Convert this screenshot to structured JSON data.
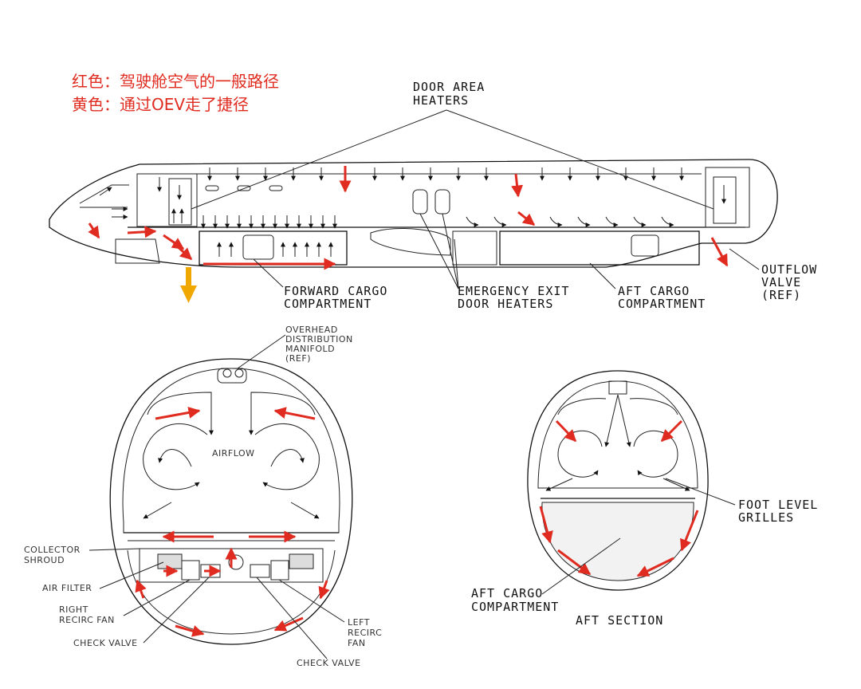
{
  "legend": {
    "red": "红色：驾驶舱空气的一般路径",
    "yellow": "黄色：通过OEV走了捷径"
  },
  "top_labels": {
    "door_area_heaters_1": "DOOR AREA",
    "door_area_heaters_2": "HEATERS",
    "forward_cargo_1": "FORWARD CARGO",
    "forward_cargo_2": "COMPARTMENT",
    "emergency_exit_1": "EMERGENCY EXIT",
    "emergency_exit_2": "DOOR HEATERS",
    "aft_cargo_1": "AFT CARGO",
    "aft_cargo_2": "COMPARTMENT",
    "outflow_1": "OUTFLOW",
    "outflow_2": "VALVE",
    "outflow_3": "(REF)"
  },
  "front_section_labels": {
    "manifold_1": "OVERHEAD",
    "manifold_2": "DISTRIBUTION",
    "manifold_3": "MANIFOLD",
    "manifold_4": "(REF)",
    "airflow": "AIRFLOW",
    "collector_1": "COLLECTOR",
    "collector_2": "SHROUD",
    "air_filter": "AIR FILTER",
    "right_fan_1": "RIGHT",
    "right_fan_2": "RECIRC FAN",
    "check_valve_left": "CHECK VALVE",
    "left_fan_1": "LEFT",
    "left_fan_2": "RECIRC",
    "left_fan_3": "FAN",
    "check_valve_bottom": "CHECK VALVE"
  },
  "aft_section_labels": {
    "foot_level_1": "FOOT LEVEL",
    "foot_level_2": "GRILLES",
    "aft_cargo_1": "AFT CARGO",
    "aft_cargo_2": "COMPARTMENT",
    "aft_section": "AFT SECTION"
  },
  "colors": {
    "cockpit_air_path": "#e02b20",
    "oev_shortcut": "#f0a800",
    "line": "#111111"
  }
}
